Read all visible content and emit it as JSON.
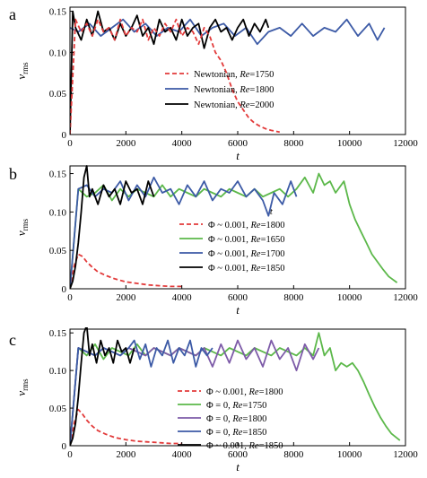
{
  "colors": {
    "newtonian_1750": "#e23a3a",
    "newtonian_1800": "#3c5aa6",
    "newtonian_2000": "#000000",
    "red_dashed": "#e23a3a",
    "green": "#5cb84a",
    "blue": "#3c5aa6",
    "purple": "#7d5ba8",
    "black": "#000000"
  },
  "chart_data": [
    {
      "type": "line",
      "panel_label": "a",
      "xlabel": "t",
      "ylabel": "v",
      "ylabel_sub": "rms",
      "xlim": [
        0,
        12000
      ],
      "ylim": [
        0,
        0.155
      ],
      "xticks": [
        0,
        2000,
        4000,
        6000,
        8000,
        10000,
        12000
      ],
      "xtick_labels": [
        "0",
        "2000",
        "4000",
        "6000",
        "8000",
        "10000",
        "12000"
      ],
      "yticks": [
        0,
        0.05,
        0.1,
        0.15
      ],
      "ytick_labels": [
        "0",
        "0.05",
        "0.10",
        "0.15"
      ],
      "legend": [
        {
          "prefix": "Newtonian, ",
          "re": "Re",
          "suffix": "=1750",
          "color": "#e23a3a",
          "dashed": true
        },
        {
          "prefix": "Newtonian, ",
          "re": "Re",
          "suffix": "=1800",
          "color": "#3c5aa6",
          "dashed": false
        },
        {
          "prefix": "Newtonian, ",
          "re": "Re",
          "suffix": "=2000",
          "color": "#000000",
          "dashed": false
        }
      ],
      "series": [
        {
          "color": "#3c5aa6",
          "dashed": false,
          "x": [
            0,
            300,
            700,
            1100,
            1500,
            1900,
            2300,
            2700,
            3100,
            3500,
            3900,
            4300,
            4700,
            5100,
            5500,
            5900,
            6300,
            6700,
            7100,
            7500,
            7900,
            8300,
            8700,
            9100,
            9500,
            9900,
            10300,
            10700,
            11000,
            11250
          ],
          "y": [
            0.13,
            0.125,
            0.135,
            0.12,
            0.13,
            0.14,
            0.125,
            0.135,
            0.12,
            0.13,
            0.125,
            0.14,
            0.12,
            0.13,
            0.135,
            0.12,
            0.13,
            0.11,
            0.125,
            0.13,
            0.12,
            0.135,
            0.12,
            0.13,
            0.125,
            0.14,
            0.12,
            0.135,
            0.115,
            0.13
          ]
        },
        {
          "color": "#000000",
          "dashed": false,
          "x": [
            0,
            100,
            200,
            400,
            600,
            800,
            1000,
            1200,
            1400,
            1600,
            1800,
            2000,
            2200,
            2400,
            2600,
            2800,
            3000,
            3200,
            3400,
            3600,
            3800,
            4000,
            4200,
            4400,
            4600,
            4800,
            5000,
            5200,
            5400,
            5600,
            5800,
            6000,
            6200,
            6400,
            6600,
            6800,
            7000,
            7100
          ],
          "y": [
            0.0,
            0.15,
            0.13,
            0.115,
            0.14,
            0.12,
            0.15,
            0.125,
            0.13,
            0.115,
            0.135,
            0.12,
            0.13,
            0.145,
            0.12,
            0.13,
            0.11,
            0.14,
            0.125,
            0.13,
            0.115,
            0.14,
            0.12,
            0.13,
            0.135,
            0.105,
            0.13,
            0.14,
            0.125,
            0.13,
            0.115,
            0.13,
            0.14,
            0.12,
            0.135,
            0.125,
            0.14,
            0.13
          ]
        },
        {
          "color": "#e23a3a",
          "dashed": true,
          "x": [
            0,
            200,
            400,
            600,
            800,
            1000,
            1200,
            1400,
            1600,
            1800,
            2000,
            2200,
            2400,
            2600,
            2800,
            3000,
            3200,
            3400,
            3600,
            3800,
            4000,
            4200,
            4400,
            4600,
            4800,
            5000,
            5200,
            5400,
            5600,
            5800,
            6000,
            6200,
            6400,
            6600,
            6800,
            7000,
            7200,
            7500
          ],
          "y": [
            0.0,
            0.14,
            0.125,
            0.135,
            0.12,
            0.14,
            0.125,
            0.13,
            0.115,
            0.14,
            0.12,
            0.13,
            0.125,
            0.14,
            0.115,
            0.13,
            0.12,
            0.135,
            0.125,
            0.14,
            0.12,
            0.13,
            0.125,
            0.11,
            0.13,
            0.12,
            0.1,
            0.09,
            0.075,
            0.055,
            0.04,
            0.03,
            0.02,
            0.014,
            0.01,
            0.007,
            0.005,
            0.003
          ]
        }
      ]
    },
    {
      "type": "line",
      "panel_label": "b",
      "xlabel": "t",
      "ylabel": "v",
      "ylabel_sub": "rms",
      "xlim": [
        0,
        12000
      ],
      "ylim": [
        0,
        0.16
      ],
      "xticks": [
        0,
        2000,
        4000,
        6000,
        8000,
        10000,
        12000
      ],
      "xtick_labels": [
        "0",
        "2000",
        "4000",
        "6000",
        "8000",
        "10000",
        "12000"
      ],
      "yticks": [
        0,
        0.05,
        0.1,
        0.15
      ],
      "ytick_labels": [
        "0",
        "0.05",
        "0.10",
        "0.15"
      ],
      "annotation": "t",
      "legend": [
        {
          "prefix": "Φ ~ 0.001, ",
          "re": "Re",
          "suffix": "=1800",
          "color": "#e23a3a",
          "dashed": true
        },
        {
          "prefix": "Φ ~ 0.001, ",
          "re": "Re",
          "suffix": "=1650",
          "color": "#5cb84a",
          "dashed": false
        },
        {
          "prefix": "Φ ~ 0.001, ",
          "re": "Re",
          "suffix": "=1700",
          "color": "#3c5aa6",
          "dashed": false
        },
        {
          "prefix": "Φ ~ 0.001, ",
          "re": "Re",
          "suffix": "=1850",
          "color": "#000000",
          "dashed": false
        }
      ],
      "series": [
        {
          "color": "#e23a3a",
          "dashed": true,
          "x": [
            0,
            150,
            300,
            450,
            600,
            800,
            1000,
            1300,
            1600,
            2000,
            2400,
            2800,
            3200,
            3600,
            4000
          ],
          "y": [
            0.0,
            0.03,
            0.045,
            0.042,
            0.035,
            0.028,
            0.022,
            0.017,
            0.013,
            0.009,
            0.007,
            0.005,
            0.004,
            0.003,
            0.003
          ]
        },
        {
          "color": "#5cb84a",
          "dashed": false,
          "x": [
            0,
            300,
            600,
            900,
            1200,
            1500,
            1800,
            2100,
            2400,
            2700,
            3000,
            3300,
            3600,
            3900,
            4200,
            4500,
            4800,
            5100,
            5400,
            5700,
            6000,
            6300,
            6600,
            6900,
            7200,
            7500,
            7800,
            8100,
            8400,
            8700,
            8900,
            9100,
            9300,
            9500,
            9800,
            10000,
            10200,
            10400,
            10600,
            10800,
            11000,
            11200,
            11400,
            11700
          ],
          "y": [
            0.0,
            0.13,
            0.12,
            0.125,
            0.135,
            0.115,
            0.13,
            0.12,
            0.13,
            0.125,
            0.12,
            0.135,
            0.12,
            0.13,
            0.125,
            0.12,
            0.13,
            0.125,
            0.12,
            0.13,
            0.125,
            0.12,
            0.13,
            0.12,
            0.125,
            0.13,
            0.12,
            0.13,
            0.145,
            0.125,
            0.15,
            0.135,
            0.14,
            0.125,
            0.14,
            0.11,
            0.09,
            0.075,
            0.06,
            0.045,
            0.035,
            0.025,
            0.016,
            0.008
          ]
        },
        {
          "color": "#3c5aa6",
          "dashed": false,
          "x": [
            0,
            300,
            600,
            900,
            1200,
            1500,
            1800,
            2100,
            2400,
            2700,
            3000,
            3300,
            3600,
            3900,
            4200,
            4500,
            4800,
            5100,
            5400,
            5700,
            6000,
            6300,
            6600,
            6900,
            7100,
            7300,
            7600,
            7900,
            8100
          ],
          "y": [
            0.0,
            0.13,
            0.135,
            0.12,
            0.13,
            0.125,
            0.14,
            0.115,
            0.135,
            0.12,
            0.145,
            0.125,
            0.13,
            0.11,
            0.135,
            0.12,
            0.14,
            0.115,
            0.13,
            0.125,
            0.14,
            0.12,
            0.13,
            0.115,
            0.095,
            0.125,
            0.11,
            0.14,
            0.12
          ]
        },
        {
          "color": "#000000",
          "dashed": false,
          "x": [
            0,
            100,
            200,
            300,
            400,
            500,
            600,
            700,
            800,
            1000,
            1200,
            1400,
            1600,
            1800,
            2000,
            2200,
            2400,
            2600,
            2800,
            3000
          ],
          "y": [
            0.0,
            0.01,
            0.03,
            0.06,
            0.1,
            0.145,
            0.16,
            0.12,
            0.13,
            0.11,
            0.135,
            0.12,
            0.13,
            0.11,
            0.14,
            0.125,
            0.13,
            0.11,
            0.14,
            0.12
          ]
        }
      ]
    },
    {
      "type": "line",
      "panel_label": "c",
      "xlabel": "t",
      "ylabel": "v",
      "ylabel_sub": "rms",
      "xlim": [
        0,
        12000
      ],
      "ylim": [
        0,
        0.155
      ],
      "xticks": [
        0,
        2000,
        4000,
        6000,
        8000,
        10000,
        12000
      ],
      "xtick_labels": [
        "0",
        "2000",
        "4000",
        "6000",
        "8000",
        "10000",
        "12000"
      ],
      "yticks": [
        0,
        0.05,
        0.1,
        0.15
      ],
      "ytick_labels": [
        "0",
        "0.05",
        "0.10",
        "0.15"
      ],
      "legend": [
        {
          "prefix": "Φ ~ 0.001, ",
          "re": "Re",
          "suffix": "=1800",
          "color": "#e23a3a",
          "dashed": true
        },
        {
          "prefix": "Φ = 0, ",
          "re": "Re",
          "suffix": "=1750",
          "color": "#5cb84a",
          "dashed": false
        },
        {
          "prefix": "Φ = 0, ",
          "re": "Re",
          "suffix": "=1800",
          "color": "#7d5ba8",
          "dashed": false
        },
        {
          "prefix": "Φ = 0, ",
          "re": "Re",
          "suffix": "=1850",
          "color": "#3c5aa6",
          "dashed": false
        },
        {
          "prefix": "Φ ~ 0.001, ",
          "re": "Re",
          "suffix": "=1850",
          "color": "#000000",
          "dashed": false
        }
      ],
      "series": [
        {
          "color": "#e23a3a",
          "dashed": true,
          "x": [
            0,
            150,
            300,
            450,
            600,
            800,
            1000,
            1300,
            1600,
            2000,
            2400,
            2800,
            3200,
            3600,
            4000
          ],
          "y": [
            0.0,
            0.03,
            0.048,
            0.042,
            0.034,
            0.026,
            0.02,
            0.015,
            0.011,
            0.008,
            0.006,
            0.005,
            0.004,
            0.003,
            0.003
          ]
        },
        {
          "color": "#5cb84a",
          "dashed": false,
          "x": [
            0,
            300,
            600,
            900,
            1200,
            1500,
            1800,
            2100,
            2400,
            2700,
            3000,
            3300,
            3600,
            3900,
            4200,
            4500,
            4800,
            5100,
            5400,
            5700,
            6000,
            6300,
            6600,
            6900,
            7200,
            7500,
            7800,
            8100,
            8400,
            8700,
            8900,
            9100,
            9300,
            9500,
            9700,
            9900,
            10100,
            10300,
            10500,
            10700,
            10900,
            11100,
            11300,
            11500,
            11800
          ],
          "y": [
            0.0,
            0.13,
            0.12,
            0.135,
            0.115,
            0.13,
            0.125,
            0.12,
            0.135,
            0.12,
            0.13,
            0.125,
            0.12,
            0.13,
            0.125,
            0.12,
            0.13,
            0.125,
            0.12,
            0.13,
            0.125,
            0.12,
            0.13,
            0.125,
            0.12,
            0.13,
            0.125,
            0.12,
            0.13,
            0.12,
            0.15,
            0.12,
            0.13,
            0.1,
            0.11,
            0.105,
            0.11,
            0.1,
            0.085,
            0.068,
            0.052,
            0.038,
            0.026,
            0.016,
            0.007
          ]
        },
        {
          "color": "#7d5ba8",
          "dashed": false,
          "x": [
            0,
            300,
            600,
            900,
            1200,
            1500,
            1800,
            2100,
            2400,
            2700,
            3000,
            3300,
            3600,
            3900,
            4200,
            4500,
            4800,
            5100,
            5400,
            5700,
            6000,
            6300,
            6600,
            6900,
            7200,
            7500,
            7800,
            8100,
            8400,
            8700,
            8900
          ],
          "y": [
            0.0,
            0.13,
            0.125,
            0.12,
            0.13,
            0.125,
            0.12,
            0.13,
            0.125,
            0.12,
            0.13,
            0.125,
            0.12,
            0.13,
            0.125,
            0.12,
            0.13,
            0.105,
            0.135,
            0.11,
            0.14,
            0.115,
            0.13,
            0.105,
            0.14,
            0.115,
            0.13,
            0.1,
            0.135,
            0.115,
            0.13
          ]
        },
        {
          "color": "#3c5aa6",
          "dashed": false,
          "x": [
            0,
            300,
            600,
            900,
            1200,
            1500,
            1800,
            2100,
            2300,
            2500,
            2700,
            2900,
            3100,
            3300,
            3500,
            3700,
            3900,
            4100,
            4300,
            4500,
            4700,
            4900,
            5100
          ],
          "y": [
            0.0,
            0.13,
            0.125,
            0.12,
            0.13,
            0.125,
            0.12,
            0.13,
            0.14,
            0.115,
            0.135,
            0.105,
            0.13,
            0.12,
            0.14,
            0.11,
            0.13,
            0.12,
            0.14,
            0.105,
            0.13,
            0.12,
            0.13
          ]
        },
        {
          "color": "#000000",
          "dashed": false,
          "x": [
            0,
            100,
            200,
            300,
            400,
            500,
            600,
            700,
            800,
            950,
            1100,
            1250,
            1400,
            1550,
            1700,
            1850,
            2000,
            2150,
            2300
          ],
          "y": [
            0.0,
            0.01,
            0.03,
            0.065,
            0.11,
            0.15,
            0.16,
            0.12,
            0.135,
            0.11,
            0.14,
            0.12,
            0.13,
            0.11,
            0.14,
            0.125,
            0.13,
            0.11,
            0.13
          ]
        }
      ]
    }
  ]
}
